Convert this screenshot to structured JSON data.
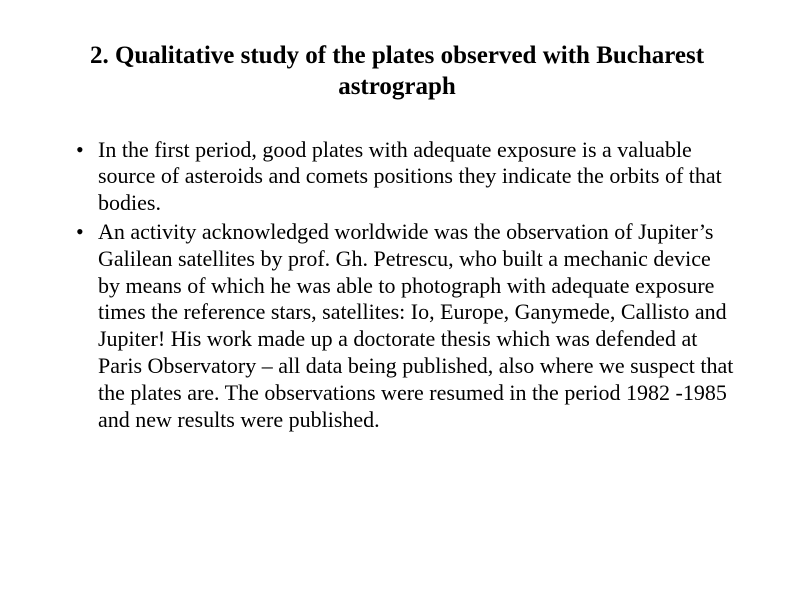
{
  "title": "2. Qualitative study of the plates observed with Bucharest astrograph",
  "bullets": [
    "In the first period, good plates with adequate exposure is a valuable source of asteroids and comets positions they indicate the orbits of that bodies.",
    "An activity acknowledged worldwide was the observation of Jupiter’s Galilean satellites by prof. Gh. Petrescu, who built a mechanic device by means of which he was able to photograph with adequate exposure times the reference stars, satellites: Io, Europe, Ganymede, Callisto and Jupiter! His work made up a doctorate thesis which was defended at Paris Observatory – all data being published, also where we suspect that the plates are. The observations were resumed in the period 1982 -1985 and new results were published."
  ]
}
